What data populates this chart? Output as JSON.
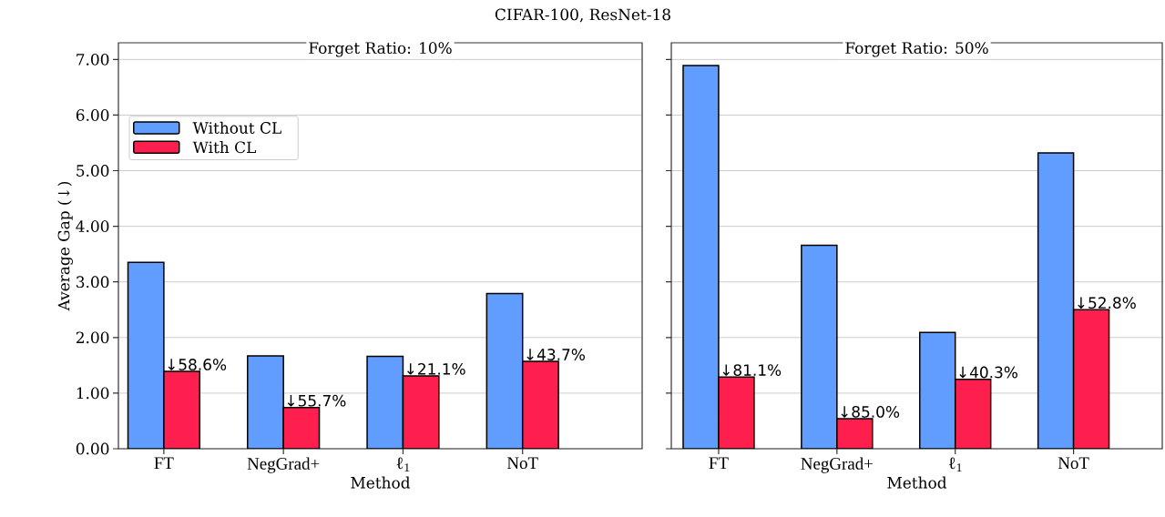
{
  "chart_data": [
    {
      "type": "bar",
      "title": "Forget Ratio: 10%",
      "xlabel": "Method",
      "ylabel": "Average Gap (↓)",
      "annotations": [
        "CIFAR-100, ResNet-18",
        {
          "text": "↓58.6%",
          "x": "FT",
          "y": 1.39
        },
        {
          "text": "↓55.7%",
          "x": "NegGrad+",
          "y": 0.74
        },
        {
          "text": "↓21.1%",
          "x": "ℓ$_{1}$",
          "y": 1.31
        },
        {
          "text": "↓43.7%",
          "x": "NoT",
          "y": 1.57
        }
      ],
      "categories": [
        "FT",
        "NegGrad+",
        "ℓ$_{1}$",
        "NoT"
      ],
      "series": [
        {
          "name": "Without CL",
          "color": "#619cff",
          "values": [
            3.35,
            1.67,
            1.66,
            2.79
          ]
        },
        {
          "name": "With CL",
          "color": "#ff1f4f",
          "values": [
            1.39,
            0.74,
            1.31,
            1.57
          ]
        }
      ],
      "ylim": [
        0,
        7.3
      ],
      "yticks": [
        {
          "value": 0,
          "label": "0.00"
        },
        {
          "value": 1,
          "label": "1.00"
        },
        {
          "value": 2,
          "label": "2.00"
        },
        {
          "value": 3,
          "label": "3.00"
        },
        {
          "value": 4,
          "label": "4.00"
        },
        {
          "value": 5,
          "label": "5.00"
        },
        {
          "value": 6,
          "label": "6.00"
        },
        {
          "value": 7,
          "label": "7.00"
        }
      ],
      "grid": "y",
      "legend": "top left"
    },
    {
      "type": "bar",
      "title": "Forget Ratio: 50%",
      "xlabel": "Method",
      "annotations": [
        {
          "text": "↓81.1%",
          "x": "FT",
          "y": 1.29
        },
        {
          "text": "↓85.0%",
          "x": "NegGrad+",
          "y": 0.54
        },
        {
          "text": "↓40.3%",
          "x": "ℓ$_{1}$",
          "y": 1.25
        },
        {
          "text": "↓52.8%",
          "x": "NoT",
          "y": 2.5
        }
      ],
      "categories": [
        "FT",
        "NegGrad+",
        "ℓ$_{1}$",
        "NoT"
      ],
      "series": [
        {
          "color": "#619cff",
          "values": [
            6.89,
            3.66,
            2.09,
            5.32
          ]
        },
        {
          "color": "#ff1f4f",
          "values": [
            1.29,
            0.54,
            1.25,
            2.5
          ]
        }
      ],
      "ylim": [
        0,
        7.3
      ],
      "yticks": [
        0,
        1,
        2,
        3,
        4,
        5,
        6,
        7
      ],
      "tick_labels": "x",
      "grid": "y",
      "legend": false
    }
  ]
}
